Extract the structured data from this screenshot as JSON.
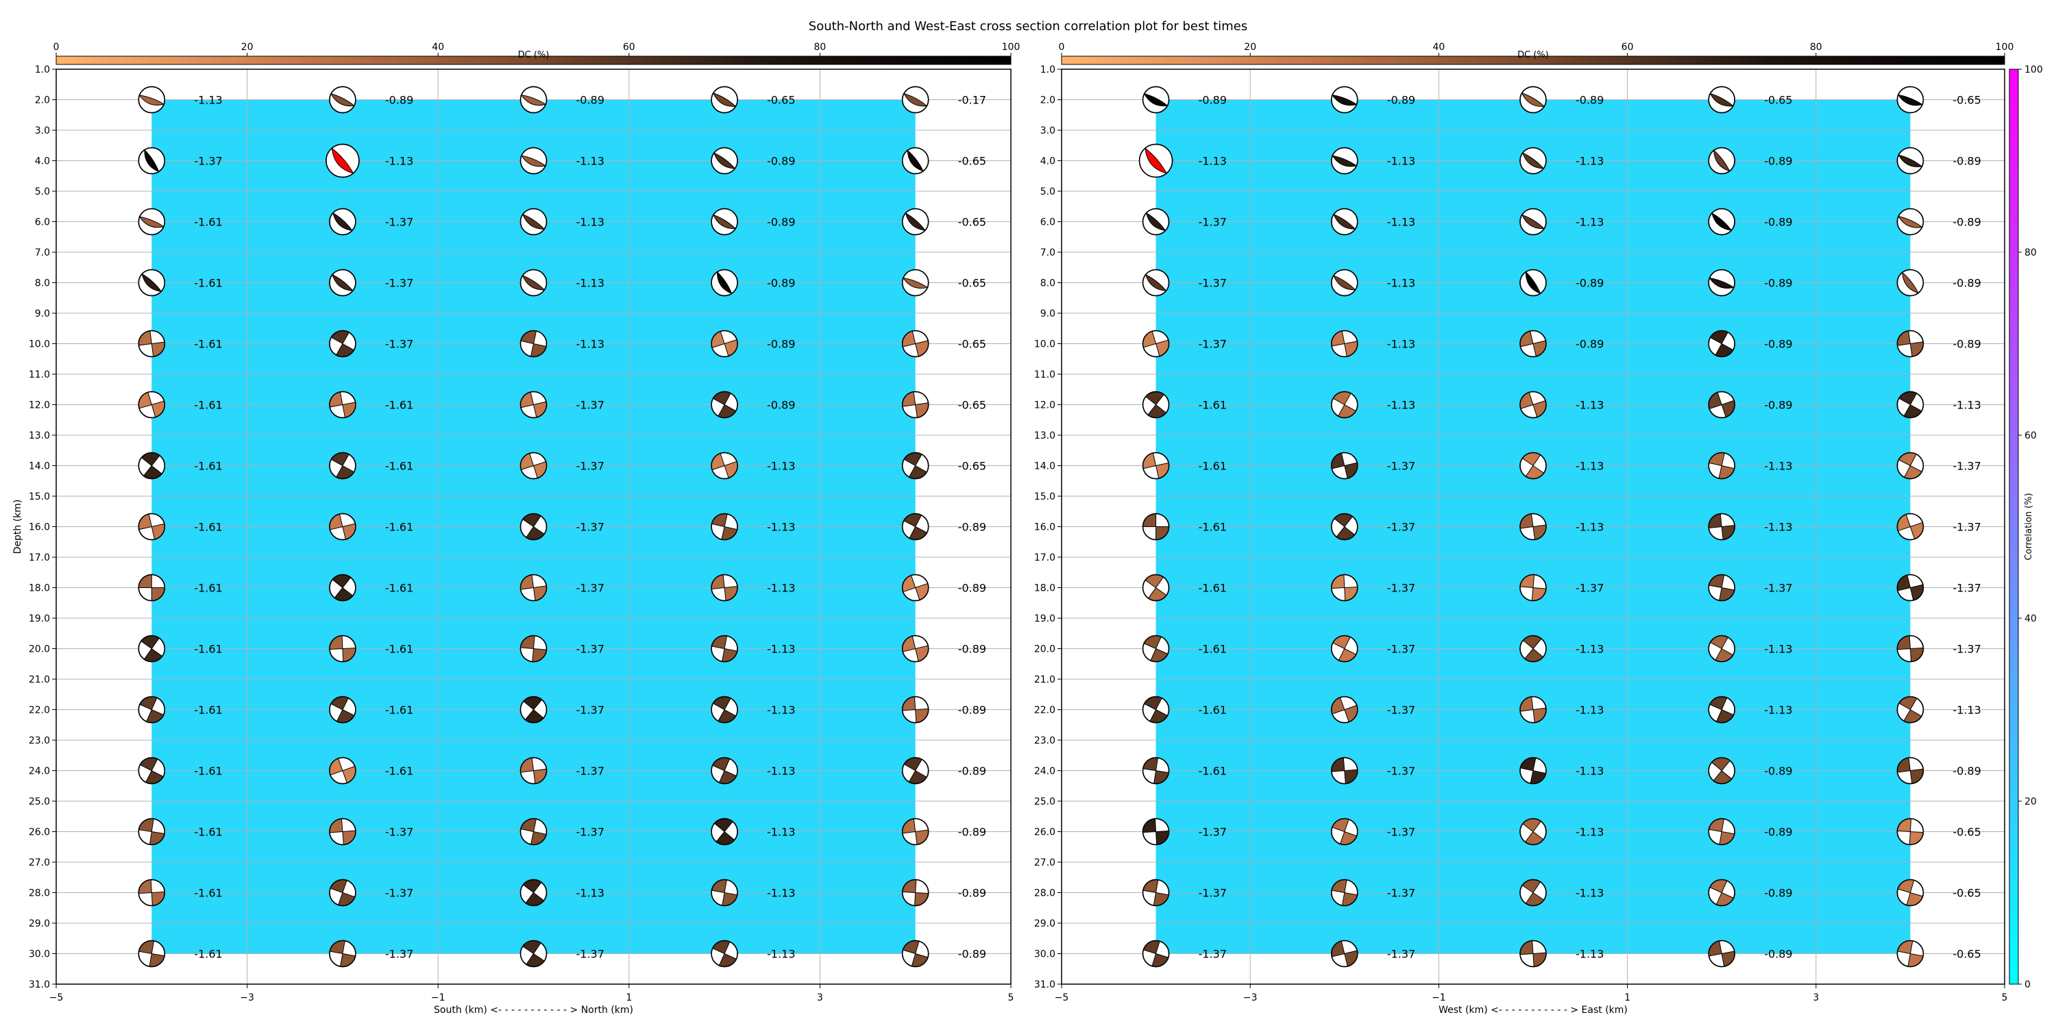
{
  "chart_data": {
    "title": "South-North and West-East cross section correlation plot for best times",
    "type": "scatter",
    "colors": {
      "correlation_fill": "#29d8fb",
      "best_solution": "#ff0000",
      "grid": "#b0b0b0",
      "dc_cmap": [
        "#ffb46e",
        "#c8784c",
        "#7a4a2c",
        "#1e1410",
        "#000000"
      ],
      "corr_cmap": [
        "#00ffff",
        "#ff00ff"
      ]
    },
    "dc_colorbar": {
      "label": "DC (%)",
      "ticks": [
        0,
        20,
        40,
        60,
        80,
        100
      ]
    },
    "corr_colorbar": {
      "label": "Correlation (%)",
      "ticks": [
        0,
        20,
        40,
        60,
        80,
        100
      ]
    },
    "panels": [
      {
        "xlabel": "South (km) <- - - - - - - - - - - > North (km)",
        "ylabel": "Depth (km)",
        "xlim": [
          -5,
          5
        ],
        "ylim": [
          31,
          1
        ],
        "xticks": [
          -5,
          -3,
          -1,
          1,
          3,
          5
        ],
        "yticks": [
          1,
          2,
          3,
          4,
          5,
          6,
          7,
          8,
          9,
          10,
          11,
          12,
          13,
          14,
          15,
          16,
          17,
          18,
          19,
          20,
          21,
          22,
          23,
          24,
          25,
          26,
          27,
          28,
          29,
          30,
          31
        ],
        "correlation_region": {
          "x": [
            -4,
            4
          ],
          "depth": [
            2,
            30
          ],
          "value": 20
        },
        "x": [
          -4,
          -2,
          0,
          2,
          4
        ],
        "depths": [
          2,
          4,
          6,
          8,
          10,
          12,
          14,
          16,
          18,
          20,
          22,
          24,
          26,
          28,
          30
        ],
        "best": {
          "x": -2,
          "depth": 4
        },
        "labels": [
          [
            "-1.13",
            "-0.89",
            "-0.89",
            "-0.65",
            "-0.17"
          ],
          [
            "-1.37",
            "-1.13",
            "-1.13",
            "-0.89",
            "-0.65"
          ],
          [
            "-1.61",
            "-1.37",
            "-1.13",
            "-0.89",
            "-0.65"
          ],
          [
            "-1.61",
            "-1.37",
            "-1.13",
            "-0.89",
            "-0.65"
          ],
          [
            "-1.61",
            "-1.37",
            "-1.13",
            "-0.89",
            "-0.65"
          ],
          [
            "-1.61",
            "-1.61",
            "-1.37",
            "-0.89",
            "-0.65"
          ],
          [
            "-1.61",
            "-1.61",
            "-1.37",
            "-1.13",
            "-0.65"
          ],
          [
            "-1.61",
            "-1.61",
            "-1.37",
            "-1.13",
            "-0.89"
          ],
          [
            "-1.61",
            "-1.61",
            "-1.37",
            "-1.13",
            "-0.89"
          ],
          [
            "-1.61",
            "-1.61",
            "-1.37",
            "-1.13",
            "-0.89"
          ],
          [
            "-1.61",
            "-1.61",
            "-1.37",
            "-1.13",
            "-0.89"
          ],
          [
            "-1.61",
            "-1.61",
            "-1.37",
            "-1.13",
            "-0.89"
          ],
          [
            "-1.61",
            "-1.37",
            "-1.37",
            "-1.13",
            "-0.89"
          ],
          [
            "-1.61",
            "-1.37",
            "-1.13",
            "-1.13",
            "-0.89"
          ],
          [
            "-1.61",
            "-1.37",
            "-1.37",
            "-1.13",
            "-0.89"
          ]
        ]
      },
      {
        "xlabel": "West (km) <- - - - - - - - - - - > East (km)",
        "xlim": [
          -5,
          5
        ],
        "ylim": [
          31,
          1
        ],
        "xticks": [
          -5,
          -3,
          -1,
          1,
          3,
          5
        ],
        "yticks": [
          1,
          2,
          3,
          4,
          5,
          6,
          7,
          8,
          9,
          10,
          11,
          12,
          13,
          14,
          15,
          16,
          17,
          18,
          19,
          20,
          21,
          22,
          23,
          24,
          25,
          26,
          27,
          28,
          29,
          30,
          31
        ],
        "correlation_region": {
          "x": [
            -4,
            4
          ],
          "depth": [
            2,
            30
          ],
          "value": 20
        },
        "x": [
          -4,
          -2,
          0,
          2,
          4
        ],
        "depths": [
          2,
          4,
          6,
          8,
          10,
          12,
          14,
          16,
          18,
          20,
          22,
          24,
          26,
          28,
          30
        ],
        "best": {
          "x": -4,
          "depth": 4
        },
        "labels": [
          [
            "-0.89",
            "-0.89",
            "-0.89",
            "-0.65",
            "-0.65"
          ],
          [
            "-1.13",
            "-1.13",
            "-1.13",
            "-0.89",
            "-0.89"
          ],
          [
            "-1.37",
            "-1.13",
            "-1.13",
            "-0.89",
            "-0.89"
          ],
          [
            "-1.37",
            "-1.13",
            "-0.89",
            "-0.89",
            "-0.89"
          ],
          [
            "-1.37",
            "-1.13",
            "-0.89",
            "-0.89",
            "-0.89"
          ],
          [
            "-1.61",
            "-1.13",
            "-1.13",
            "-0.89",
            "-1.13"
          ],
          [
            "-1.61",
            "-1.37",
            "-1.13",
            "-1.13",
            "-1.37"
          ],
          [
            "-1.61",
            "-1.37",
            "-1.13",
            "-1.13",
            "-1.37"
          ],
          [
            "-1.61",
            "-1.37",
            "-1.37",
            "-1.37",
            "-1.37"
          ],
          [
            "-1.61",
            "-1.37",
            "-1.13",
            "-1.13",
            "-1.37"
          ],
          [
            "-1.61",
            "-1.37",
            "-1.13",
            "-1.13",
            "-1.13"
          ],
          [
            "-1.61",
            "-1.37",
            "-1.13",
            "-0.89",
            "-0.89"
          ],
          [
            "-1.37",
            "-1.37",
            "-1.13",
            "-0.89",
            "-0.65"
          ],
          [
            "-1.37",
            "-1.37",
            "-1.13",
            "-0.89",
            "-0.65"
          ],
          [
            "-1.37",
            "-1.37",
            "-1.13",
            "-0.89",
            "-0.65"
          ]
        ]
      }
    ]
  }
}
